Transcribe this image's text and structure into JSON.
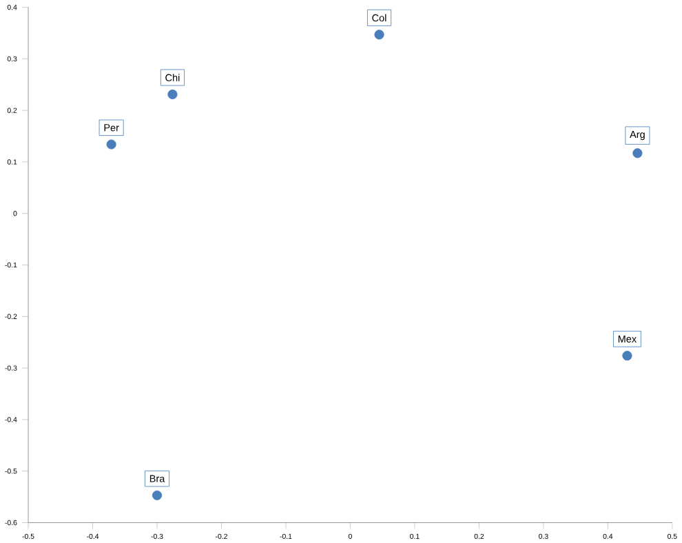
{
  "chart_data": {
    "type": "scatter",
    "x": [
      0.045,
      -0.276,
      -0.371,
      0.446,
      0.43,
      -0.3
    ],
    "values": [
      0.347,
      0.231,
      0.134,
      0.117,
      -0.276,
      -0.547
    ],
    "color": "#4a7ebb",
    "marker": "circle",
    "xlim": [
      -0.5,
      0.5
    ],
    "xticks": [
      -0.5,
      -0.4,
      -0.3,
      -0.2,
      -0.1,
      0,
      0.1,
      0.2,
      0.3,
      0.4,
      0.5
    ],
    "ylim": [
      -0.6,
      0.4
    ],
    "yticks": [
      -0.6,
      -0.5,
      -0.4,
      -0.3,
      -0.2,
      -0.1,
      0,
      0.1,
      0.2,
      0.3,
      0.4
    ],
    "annotations": [
      {
        "text": "Col",
        "x": 0.045,
        "y": 0.347
      },
      {
        "text": "Chi",
        "x": -0.276,
        "y": 0.231
      },
      {
        "text": "Per",
        "x": -0.371,
        "y": 0.134
      },
      {
        "text": "Arg",
        "x": 0.446,
        "y": 0.117
      },
      {
        "text": "Mex",
        "x": 0.43,
        "y": -0.276
      },
      {
        "text": "Bra",
        "x": -0.3,
        "y": -0.547
      }
    ]
  }
}
